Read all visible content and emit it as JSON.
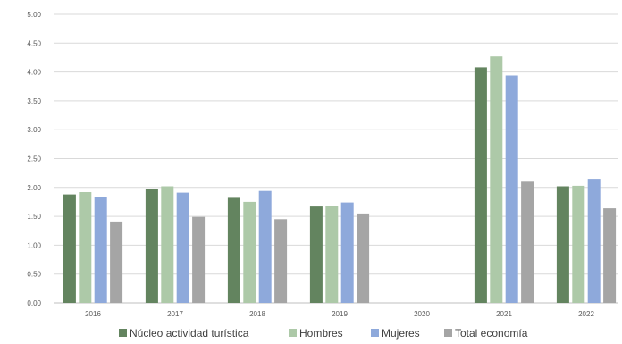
{
  "chart_data": {
    "type": "bar",
    "categories": [
      "2016",
      "2017",
      "2018",
      "2019",
      "2020",
      "2021",
      "2022"
    ],
    "series": [
      {
        "name": "Núcleo actividad turística",
        "color": "#63845f",
        "values": [
          1.88,
          1.97,
          1.82,
          1.67,
          null,
          4.08,
          2.02
        ]
      },
      {
        "name": "Hombres",
        "color": "#adc9a8",
        "values": [
          1.92,
          2.02,
          1.75,
          1.68,
          null,
          4.27,
          2.03
        ]
      },
      {
        "name": "Mujeres",
        "color": "#8ea9db",
        "values": [
          1.83,
          1.91,
          1.94,
          1.74,
          null,
          3.94,
          2.15
        ]
      },
      {
        "name": "Total economía",
        "color": "#a5a5a5",
        "values": [
          1.41,
          1.49,
          1.45,
          1.55,
          null,
          2.1,
          1.64
        ]
      }
    ],
    "yticks": [
      "0.00",
      "0.50",
      "1.00",
      "1.50",
      "2.00",
      "2.50",
      "3.00",
      "3.50",
      "4.00",
      "4.50",
      "5.00"
    ],
    "ylim": [
      0,
      5
    ],
    "grid": true,
    "legend_position": "bottom"
  }
}
